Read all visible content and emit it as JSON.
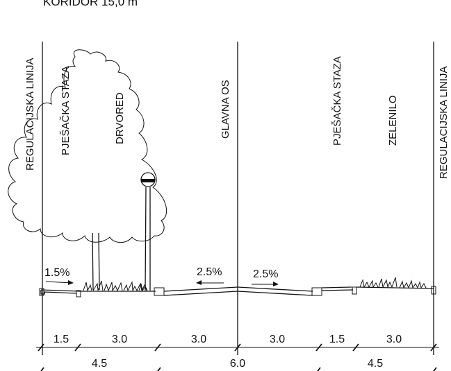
{
  "title": "KORIDOR 15,0 m",
  "vertical_labels": {
    "left_regulation_line": "REGULACIJSKA LINIJA",
    "left_sidewalk": "PJEŠAČKA STAZA",
    "tree_row": "DRVORED",
    "main_axis": "GLAVNA OS",
    "right_sidewalk": "PJEŠAČKA STAZA",
    "green_strip": "ZELENILO",
    "right_regulation_line": "REGULACIJSKA LINIJA"
  },
  "slopes": {
    "sidewalk_left": "1.5%",
    "road_left": "2.5%",
    "road_right": "2.5%"
  },
  "dimensions_row1": [
    "1.5",
    "3.0",
    "3.0",
    "3.0",
    "1.5",
    "3.0"
  ],
  "dimensions_row2": [
    "4.5",
    "6.0",
    "4.5"
  ]
}
